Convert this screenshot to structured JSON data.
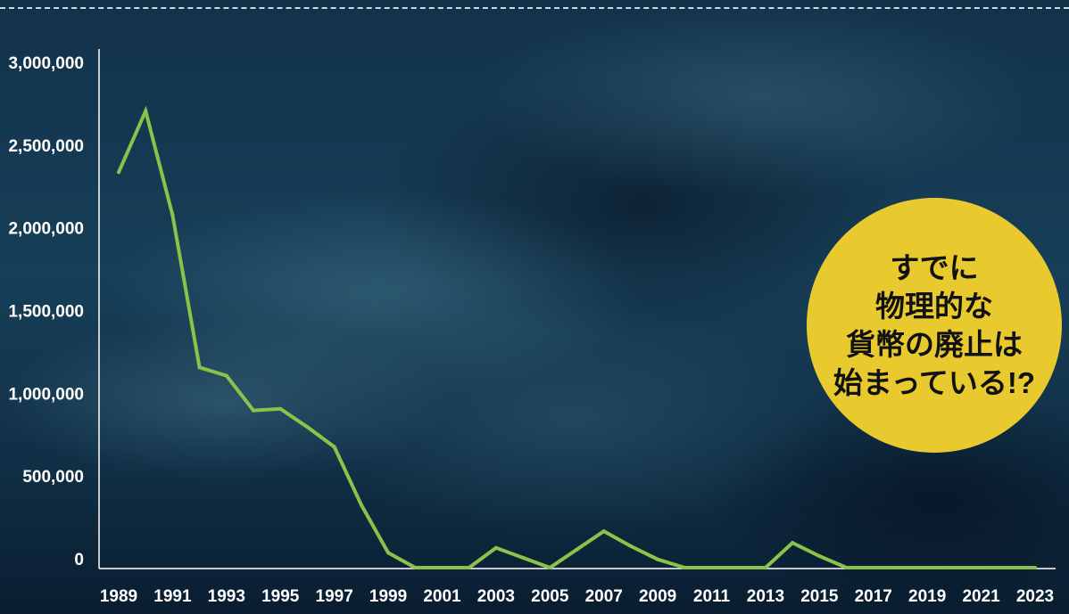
{
  "chart_data": {
    "type": "line",
    "title": "",
    "xlabel": "",
    "ylabel": "",
    "ylim": [
      0,
      3000000
    ],
    "xlim": [
      1989,
      2023
    ],
    "grid": false,
    "y_ticks": [
      "0",
      "500,000",
      "1,000,000",
      "1,500,000",
      "2,000,000",
      "2,500,000",
      "3,000,000"
    ],
    "y_tick_values": [
      0,
      500000,
      1000000,
      1500000,
      2000000,
      2500000,
      3000000
    ],
    "x_ticks": [
      "1989",
      "1991",
      "1993",
      "1995",
      "1997",
      "1999",
      "2001",
      "2003",
      "2005",
      "2007",
      "2009",
      "2011",
      "2013",
      "2015",
      "2017",
      "2019",
      "2021",
      "2023"
    ],
    "series": [
      {
        "color": "#8bc34a",
        "x": [
          1989,
          1990,
          1991,
          1992,
          1993,
          1994,
          1995,
          1996,
          1997,
          1998,
          1999,
          2000,
          2001,
          2002,
          2003,
          2004,
          2005,
          2006,
          2007,
          2008,
          2009,
          2010,
          2011,
          2012,
          2013,
          2014,
          2015,
          2016,
          2017,
          2018,
          2019,
          2020,
          2021,
          2022,
          2023
        ],
        "values": [
          2390000,
          2760000,
          2130000,
          1210000,
          1160000,
          950000,
          960000,
          850000,
          730000,
          380000,
          90000,
          0,
          0,
          0,
          120000,
          60000,
          0,
          110000,
          220000,
          130000,
          50000,
          0,
          0,
          0,
          0,
          150000,
          70000,
          0,
          0,
          0,
          0,
          0,
          0,
          0,
          0
        ]
      }
    ]
  },
  "badge": {
    "color": "#e9ca2e",
    "lines": [
      "すでに",
      "物理的な",
      "貨幣の廃止は",
      "始まっている!?"
    ]
  }
}
